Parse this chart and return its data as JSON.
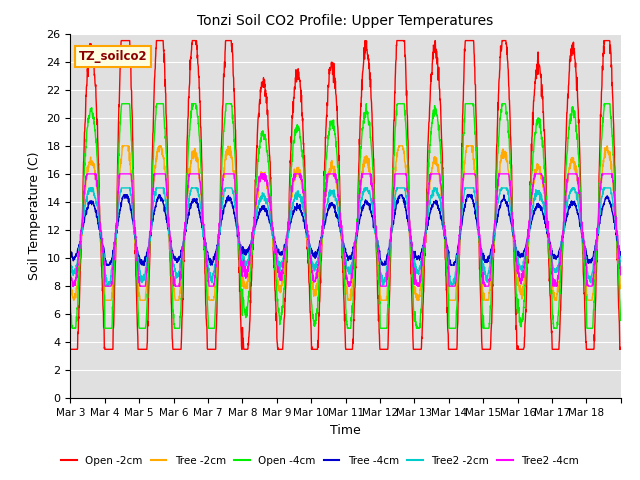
{
  "title": "Tonzi Soil CO2 Profile: Upper Temperatures",
  "ylabel": "Soil Temperature (C)",
  "xlabel": "Time",
  "watermark": "TZ_soilco2",
  "ylim": [
    0,
    26
  ],
  "yticks": [
    0,
    2,
    4,
    6,
    8,
    10,
    12,
    14,
    16,
    18,
    20,
    22,
    24,
    26
  ],
  "xtick_labels": [
    "Mar 3",
    "Mar 4",
    "Mar 5",
    "Mar 6",
    "Mar 7",
    "Mar 8",
    "Mar 9",
    "Mar 10",
    "Mar 11",
    "Mar 12",
    "Mar 13",
    "Mar 14",
    "Mar 15",
    "Mar 16",
    "Mar 17",
    "Mar 18"
  ],
  "series_colors": [
    "#ff0000",
    "#ffaa00",
    "#00ee00",
    "#0000cc",
    "#00cccc",
    "#ff00ff"
  ],
  "series_labels": [
    "Open -2cm",
    "Tree -2cm",
    "Open -4cm",
    "Tree -4cm",
    "Tree2 -2cm",
    "Tree2 -4cm"
  ],
  "bg_color": "#e0e0e0",
  "grid_color": "#ffffff",
  "figsize": [
    6.4,
    4.8
  ],
  "dpi": 100
}
